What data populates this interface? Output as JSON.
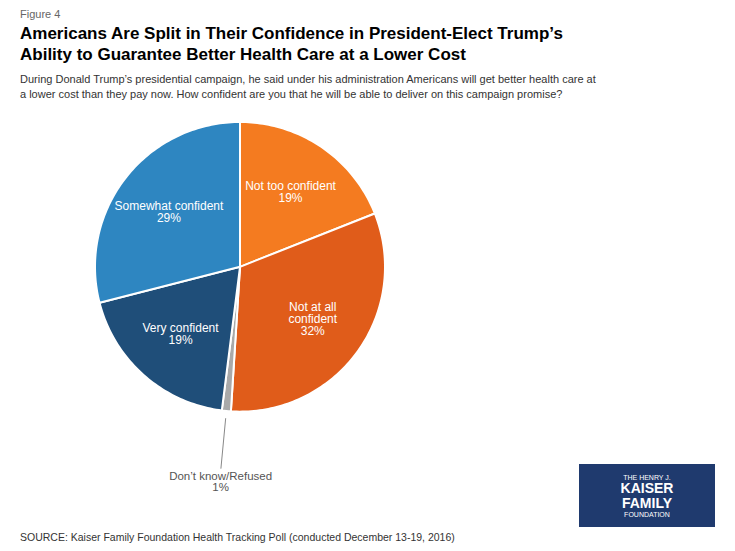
{
  "chart_data": {
    "type": "pie",
    "figure_label": "Figure 4",
    "title": "Americans Are Split in Their Confidence in President-Elect Trump’s\nAbility to Guarantee Better Health Care at a Lower Cost",
    "subtitle": "During Donald Trump’s presidential campaign, he said under his administration Americans will get better health care at\na lower cost than they pay now. How confident are you that he will be able to deliver on this campaign promise?",
    "source": "SOURCE: Kaiser Family Foundation Health Tracking Poll (conducted December 13-19, 2016)",
    "categories": [
      "Not too confident",
      "Not at all\nconfident",
      "Don’t know/Refused",
      "Very confident",
      "Somewhat confident"
    ],
    "values": [
      19,
      32,
      1,
      19,
      29
    ],
    "value_labels": [
      "19%",
      "32%",
      "1%",
      "19%",
      "29%"
    ],
    "colors": [
      "#F47B20",
      "#E05C1A",
      "#A9A9A9",
      "#1F4E79",
      "#2E86C1"
    ],
    "data_labels": true,
    "logo": {
      "texts": [
        "THE HENRY J.",
        "KAISER",
        "FAMILY",
        "FOUNDATION"
      ],
      "color": "#1F3A6E"
    }
  }
}
